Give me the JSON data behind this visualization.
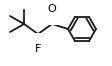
{
  "bg_color": "#ffffff",
  "line_color": "#1a1a1a",
  "line_width": 1.3,
  "dpi": 100,
  "figsize": [
    1.12,
    0.66
  ]
}
